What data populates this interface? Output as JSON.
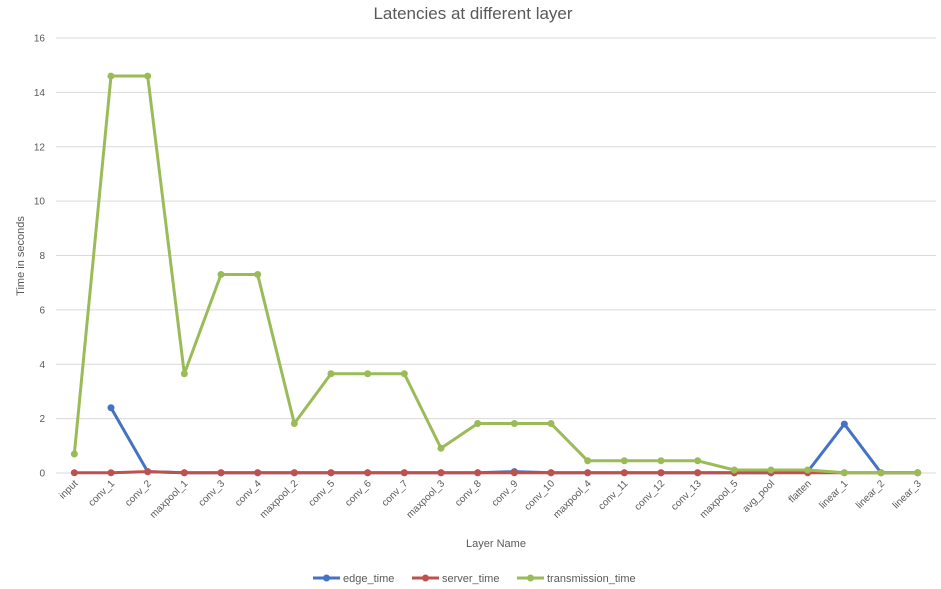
{
  "chart_data": {
    "type": "line",
    "title": "Latencies at different layer",
    "xlabel": "Layer Name",
    "ylabel": "Time in seconds",
    "ylim": [
      0,
      16
    ],
    "yticks": [
      0,
      2,
      4,
      6,
      8,
      10,
      12,
      14,
      16
    ],
    "grid": "horizontal",
    "legend_position": "bottom",
    "categories": [
      "input",
      "conv_1",
      "conv_2",
      "maxpool_1",
      "conv_3",
      "conv_4",
      "maxpool_2",
      "conv_5",
      "conv_6",
      "conv_7",
      "maxpool_3",
      "conv_8",
      "conv_9",
      "conv_10",
      "maxpool_4",
      "conv_11",
      "conv_12",
      "conv_13",
      "maxpool_5",
      "avg_pool",
      "flatten",
      "linear_1",
      "linear_2",
      "linear_3"
    ],
    "series": [
      {
        "name": "edge_time",
        "color": "#4472C4",
        "values": [
          null,
          2.4,
          0.05,
          0.01,
          0.01,
          0.01,
          0.01,
          0.01,
          0.01,
          0.01,
          0.01,
          0.01,
          0.05,
          0.01,
          0.01,
          0.01,
          0.01,
          0.01,
          0.01,
          0.01,
          0.05,
          1.8,
          0.01,
          0.01
        ]
      },
      {
        "name": "server_time",
        "color": "#C0504D",
        "values": [
          0.01,
          0.01,
          0.05,
          0.01,
          0.01,
          0.01,
          0.01,
          0.01,
          0.01,
          0.01,
          0.01,
          0.01,
          0.01,
          0.01,
          0.01,
          0.01,
          0.01,
          0.01,
          0.01,
          0.01,
          0.01,
          0.01,
          0.01,
          0.01
        ]
      },
      {
        "name": "transmission_time",
        "color": "#9BBB59",
        "values": [
          0.7,
          14.6,
          14.6,
          3.65,
          7.3,
          7.3,
          1.82,
          3.65,
          3.65,
          3.65,
          0.91,
          1.82,
          1.82,
          1.82,
          0.45,
          0.45,
          0.45,
          0.45,
          0.11,
          0.11,
          0.11,
          0.01,
          0.01,
          0.01
        ]
      }
    ]
  }
}
